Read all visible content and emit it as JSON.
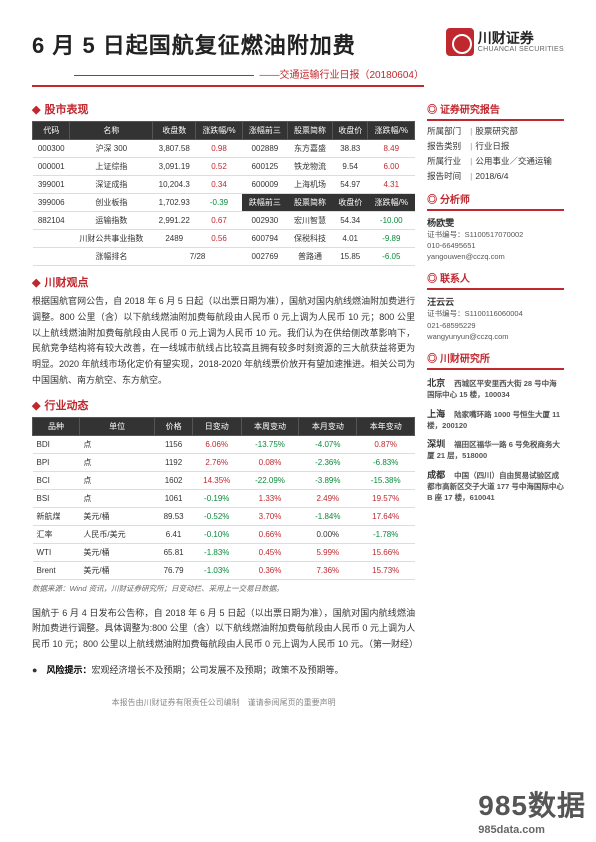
{
  "header": {
    "title": "6 月 5 日起国航复征燃油附加费",
    "subtitle": "——交通运输行业日报（20180604）",
    "brand_name": "川财证券",
    "brand_en": "CHUANCAI SECURITIES",
    "brand_color": "#c0282f"
  },
  "sections": {
    "market": "股市表现",
    "viewpoint": "川财观点",
    "dynamics": "行业动态"
  },
  "market_table": {
    "headers_left": [
      "代码",
      "名称",
      "收盘数",
      "涨跌幅/%"
    ],
    "headers_right_top": [
      "涨幅前三",
      "股票简称",
      "收盘价",
      "涨跌幅/%"
    ],
    "headers_right_bot": [
      "跌幅前三",
      "股票简称",
      "收盘价",
      "涨跌幅/%"
    ],
    "left_rows": [
      {
        "code": "000300",
        "name": "沪深 300",
        "close": "3,807.58",
        "chg": "0.98"
      },
      {
        "code": "000001",
        "name": "上证综指",
        "close": "3,091.19",
        "chg": "0.52"
      },
      {
        "code": "399001",
        "name": "深证成指",
        "close": "10,204.3",
        "chg": "0.34"
      },
      {
        "code": "399006",
        "name": "创业板指",
        "close": "1,702.93",
        "chg": "-0.39"
      },
      {
        "code": "882104",
        "name": "运输指数",
        "close": "2,991.22",
        "chg": "0.67"
      },
      {
        "code": "",
        "name": "川财公共事业指数",
        "close": "2489",
        "chg": "0.56"
      }
    ],
    "rank_row": {
      "label": "涨幅排名",
      "value": "7/28"
    },
    "right_top_rows": [
      {
        "code": "002889",
        "name": "东方嘉盛",
        "close": "38.83",
        "chg": "8.49"
      },
      {
        "code": "600125",
        "name": "铁龙物流",
        "close": "9.54",
        "chg": "6.00"
      },
      {
        "code": "600009",
        "name": "上海机场",
        "close": "54.97",
        "chg": "4.31"
      }
    ],
    "right_bot_rows": [
      {
        "code": "002930",
        "name": "宏川智慧",
        "close": "54.34",
        "chg": "-10.00"
      },
      {
        "code": "600794",
        "name": "保税科技",
        "close": "4.01",
        "chg": "-9.89"
      },
      {
        "code": "002769",
        "name": "普路通",
        "close": "15.85",
        "chg": "-6.05"
      }
    ]
  },
  "viewpoint_text": "根据国航官网公告，自 2018 年 6 月 5 日起（以出票日期为准），国航对国内航线燃油附加费进行调整。800 公里（含）以下航线燃油附加费每航段由人民币 0 元上调为人民币 10 元；800 公里以上航线燃油附加费每航段由人民币 0 元上调为人民币 10 元。我们认为在供给侧改革影响下，民航竞争结构将有较大改善，在一线城市航线占比较高且拥有较多时刻资源的三大航获益将更为明显。2020 年航线市场化定价有望实现，2018-2020 年航线票价放开有望加速推进。相关公司为中国国航、南方航空、东方航空。",
  "dyn_table": {
    "headers": [
      "品种",
      "单位",
      "价格",
      "日变动",
      "本周变动",
      "本月变动",
      "本年变动"
    ],
    "rows": [
      {
        "name": "BDI",
        "unit": "点",
        "price": "1156",
        "d": "6.06%",
        "w": "-13.75%",
        "m": "-4.07%",
        "y": "0.87%",
        "dc": "red",
        "wc": "green",
        "mc": "green",
        "yc": "red"
      },
      {
        "name": "BPI",
        "unit": "点",
        "price": "1192",
        "d": "2.76%",
        "w": "0.08%",
        "m": "-2.36%",
        "y": "-6.83%",
        "dc": "red",
        "wc": "red",
        "mc": "green",
        "yc": "green"
      },
      {
        "name": "BCI",
        "unit": "点",
        "price": "1602",
        "d": "14.35%",
        "w": "-22.09%",
        "m": "-3.89%",
        "y": "-15.38%",
        "dc": "red",
        "wc": "green",
        "mc": "green",
        "yc": "green"
      },
      {
        "name": "BSI",
        "unit": "点",
        "price": "1061",
        "d": "-0.19%",
        "w": "1.33%",
        "m": "2.49%",
        "y": "19.57%",
        "dc": "green",
        "wc": "red",
        "mc": "red",
        "yc": "red"
      },
      {
        "name": "新航煤",
        "unit": "美元/桶",
        "price": "89.53",
        "d": "-0.52%",
        "w": "3.70%",
        "m": "-1.84%",
        "y": "17.64%",
        "dc": "green",
        "wc": "red",
        "mc": "green",
        "yc": "red"
      },
      {
        "name": "汇率",
        "unit": "人民币/美元",
        "price": "6.41",
        "d": "-0.10%",
        "w": "0.66%",
        "m": "0.00%",
        "y": "-1.78%",
        "dc": "green",
        "wc": "red",
        "mc": "",
        "yc": "green"
      },
      {
        "name": "WTI",
        "unit": "美元/桶",
        "price": "65.81",
        "d": "-1.83%",
        "w": "0.45%",
        "m": "5.99%",
        "y": "15.66%",
        "dc": "green",
        "wc": "red",
        "mc": "red",
        "yc": "red"
      },
      {
        "name": "Brent",
        "unit": "美元/桶",
        "price": "76.79",
        "d": "-1.03%",
        "w": "0.36%",
        "m": "7.36%",
        "y": "15.73%",
        "dc": "green",
        "wc": "red",
        "mc": "red",
        "yc": "red"
      }
    ],
    "source": "数据来源：Wind 资讯，川财证券研究所；日变动栏、采用上一交易日数据。"
  },
  "news_text": "国航于 6 月 4 日发布公告称，自 2018 年 6 月 5 日起（以出票日期为准），国航对国内航线燃油附加费进行调整。具体调整为:800 公里（含）以下航线燃油附加费每航段由人民币 0 元上调为人民币 10 元；800 公里以上航线燃油附加费每航段由人民币 0 元上调为人民币 10 元。（第一财经）",
  "risk_label": "风险提示：",
  "risk_text": "宏观经济增长不及预期；公司发展不及预期；政策不及预期等。",
  "right": {
    "report_head": "证券研究报告",
    "rows": [
      {
        "label": "所属部门",
        "value": "股票研究部"
      },
      {
        "label": "报告类别",
        "value": "行业日报"
      },
      {
        "label": "所属行业",
        "value": "公用事业／交通运输"
      },
      {
        "label": "报告时间",
        "value": "2018/6/4"
      }
    ],
    "analyst_head": "分析师",
    "analyst_name": "杨欧雯",
    "analyst_cert": "证书编号：S1100517070002",
    "analyst_tel": "010-66495651",
    "analyst_mail": "yangouwen@cczq.com",
    "contact_head": "联系人",
    "contact_name": "汪云云",
    "contact_cert": "证书编号：S1100116060004",
    "contact_tel": "021-68595229",
    "contact_mail": "wangyunyun@cczq.com",
    "inst_head": "川财研究所",
    "offices": [
      {
        "city": "北京",
        "addr": "西城区平安里西大街 28 号中海国际中心 15 楼，100034"
      },
      {
        "city": "上海",
        "addr": "陆家嘴环路 1000 号恒生大厦 11 楼，200120"
      },
      {
        "city": "深圳",
        "addr": "福田区福华一路 6 号免税商务大厦 21 层，518000"
      },
      {
        "city": "成都",
        "addr": "中国（四川）自由贸易试验区成都市高新区交子大道 177 号中海国际中心 B 座 17 楼，610041"
      }
    ]
  },
  "disclaimer": "本报告由川财证券有限责任公司编制　谨请参阅尾页的重要声明",
  "watermark": {
    "big": "985数据",
    "url": "985data.com"
  }
}
